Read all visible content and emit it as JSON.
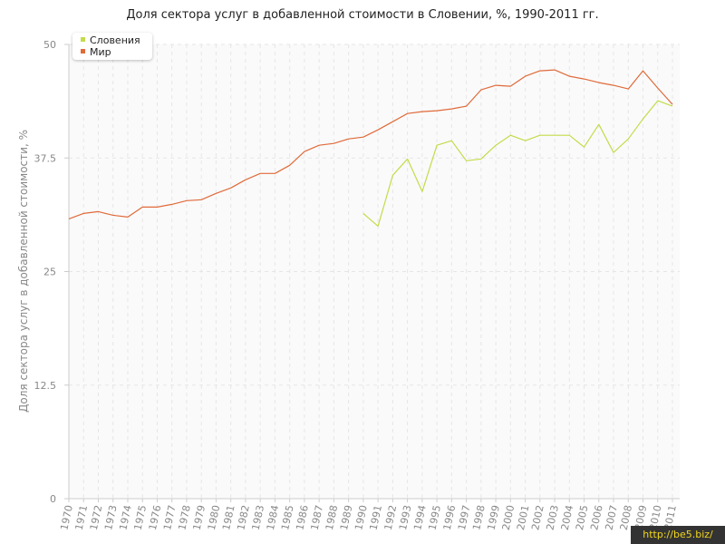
{
  "chart_data": {
    "type": "line",
    "title": "Доля сектора услуг в добавленной стоимости в Словении, %, 1990-2011 гг.",
    "ylabel": "Доля сектора услуг в добавленной стоимости, %",
    "xlabel": "",
    "ylim": [
      0,
      50
    ],
    "yticks": [
      "0",
      "12.5",
      "25",
      "37.5",
      "50"
    ],
    "grid": true,
    "legend_position": "top-left",
    "x": [
      1970,
      1971,
      1972,
      1973,
      1974,
      1975,
      1976,
      1977,
      1978,
      1979,
      1980,
      1981,
      1982,
      1983,
      1984,
      1985,
      1986,
      1987,
      1988,
      1989,
      1990,
      1991,
      1992,
      1993,
      1994,
      1995,
      1996,
      1997,
      1998,
      1999,
      2000,
      2001,
      2002,
      2003,
      2004,
      2005,
      2006,
      2007,
      2008,
      2009,
      2010,
      2011
    ],
    "series": [
      {
        "name": "Словения",
        "color": "#c2dc4a",
        "values": [
          null,
          null,
          null,
          null,
          null,
          null,
          null,
          null,
          null,
          null,
          null,
          null,
          null,
          null,
          null,
          null,
          null,
          null,
          null,
          null,
          31.4,
          30.0,
          35.6,
          37.4,
          33.8,
          38.9,
          39.4,
          37.2,
          37.4,
          38.9,
          40.0,
          39.4,
          40.0,
          40.0,
          40.0,
          38.7,
          41.2,
          38.1,
          39.6,
          41.8,
          43.8,
          43.2
        ]
      },
      {
        "name": "Мир",
        "color": "#e06a3a",
        "values": [
          30.8,
          31.4,
          31.6,
          31.2,
          31.0,
          32.1,
          32.1,
          32.4,
          32.8,
          32.9,
          33.6,
          34.2,
          35.1,
          35.8,
          35.8,
          36.7,
          38.2,
          38.9,
          39.1,
          39.6,
          39.8,
          40.6,
          41.5,
          42.4,
          42.6,
          42.7,
          42.9,
          43.2,
          45.0,
          45.5,
          45.4,
          46.5,
          47.1,
          47.2,
          46.5,
          46.2,
          45.8,
          45.5,
          45.1,
          47.1,
          45.2,
          43.4
        ]
      }
    ]
  },
  "watermark": "http://be5.biz/"
}
